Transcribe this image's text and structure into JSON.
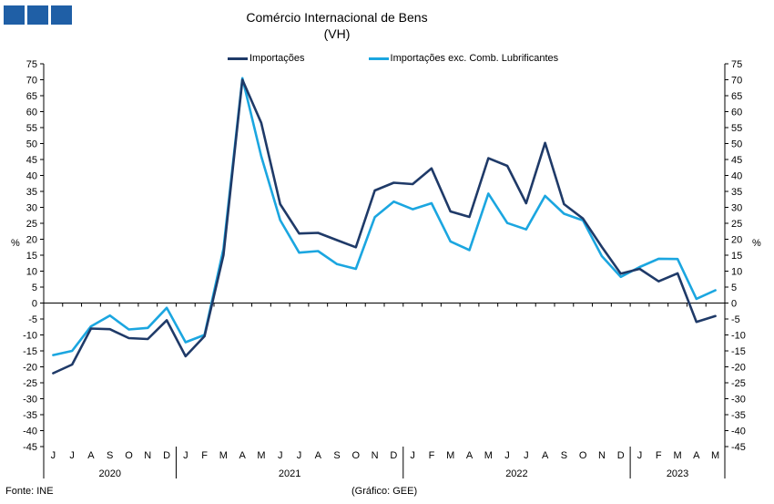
{
  "logo_colors": [
    "#1f5fa6",
    "#1f5fa6",
    "#1f5fa6"
  ],
  "title": "Comércio Internacional de Bens",
  "subtitle": "(VH)",
  "footer": {
    "source": "Fonte: INE",
    "credit": "(Gráfico: GEE)"
  },
  "chart_data": {
    "type": "line",
    "title": "Comércio Internacional de Bens",
    "subtitle": "(VH)",
    "ylabel_left": "%",
    "ylabel_right": "%",
    "ylim": [
      -45,
      75
    ],
    "y_ticks": [
      75,
      70,
      65,
      60,
      55,
      50,
      45,
      40,
      35,
      30,
      25,
      20,
      15,
      10,
      5,
      0,
      -5,
      -10,
      -15,
      -20,
      -25,
      -30,
      -35,
      -40,
      -45
    ],
    "legend_position": "top-center",
    "grid": false,
    "x_months": [
      "J",
      "J",
      "A",
      "S",
      "O",
      "N",
      "D",
      "J",
      "F",
      "M",
      "A",
      "M",
      "J",
      "J",
      "A",
      "S",
      "O",
      "N",
      "D",
      "J",
      "F",
      "M",
      "A",
      "M",
      "J",
      "J",
      "A",
      "S",
      "O",
      "N",
      "D",
      "J",
      "F",
      "M",
      "A",
      "M"
    ],
    "years": [
      {
        "label": "2020",
        "start": 0,
        "end": 6
      },
      {
        "label": "2021",
        "start": 7,
        "end": 18
      },
      {
        "label": "2022",
        "start": 19,
        "end": 30
      },
      {
        "label": "2023",
        "start": 31,
        "end": 35
      }
    ],
    "series": [
      {
        "name": "Importações",
        "color": "#1f3a68",
        "values": [
          -22,
          -19.3,
          -8,
          -8.2,
          -11,
          -11.3,
          -5.4,
          -16.7,
          -10.4,
          15,
          70,
          56.5,
          31,
          21.8,
          22,
          19.7,
          17.5,
          35.3,
          37.7,
          37.3,
          42.2,
          28.7,
          27,
          45.4,
          43,
          31.3,
          50.2,
          31,
          26.5,
          17.6,
          9.2,
          10.7,
          6.8,
          9.3,
          -5.9,
          -4.1
        ]
      },
      {
        "name": "Importações exc. Comb. Lubrificantes",
        "color": "#1ba6e0",
        "values": [
          -16.3,
          -15,
          -7.3,
          -3.9,
          -8.3,
          -7.8,
          -1.5,
          -12.3,
          -10,
          17,
          70.5,
          46,
          26,
          15.8,
          16.3,
          12.2,
          10.7,
          26.9,
          31.8,
          29.4,
          31.3,
          19.3,
          16.6,
          34.3,
          25.1,
          23.1,
          33.6,
          28,
          25.9,
          14.7,
          8.2,
          11.3,
          13.9,
          13.8,
          1.3,
          4
        ]
      }
    ]
  }
}
